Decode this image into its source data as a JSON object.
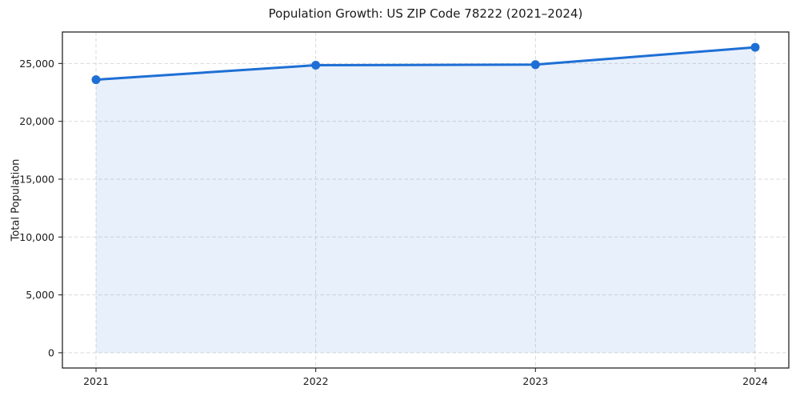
{
  "page": {
    "background": "#ffffff"
  },
  "chart_data": {
    "type": "area",
    "title": "Population Growth: US ZIP Code 78222 (2021–2024)",
    "xlabel": "",
    "ylabel": "Total Population",
    "x": [
      2021,
      2022,
      2023,
      2024
    ],
    "x_tick_labels": [
      "2021",
      "2022",
      "2023",
      "2024"
    ],
    "series": [
      {
        "name": "Total Population",
        "values": [
          23600,
          24850,
          24900,
          26400
        ]
      }
    ],
    "y_ticks": [
      0,
      5000,
      10000,
      15000,
      20000,
      25000
    ],
    "y_tick_labels": [
      "0",
      "5,000",
      "10,000",
      "15,000",
      "20,000",
      "25,000"
    ],
    "xlim": [
      2020.847,
      2024.153
    ],
    "ylim": [
      -1320,
      27720
    ],
    "area_baseline": 0,
    "grid": true,
    "grid_style": "dashed",
    "legend": "none",
    "marker": "circle",
    "colors": {
      "line": "#1e6fd5",
      "area_fill": "rgba(30, 111, 213, 0.10)",
      "grid": "#d9d9d9",
      "axis": "#262626",
      "text": "#1a1a1a"
    }
  }
}
